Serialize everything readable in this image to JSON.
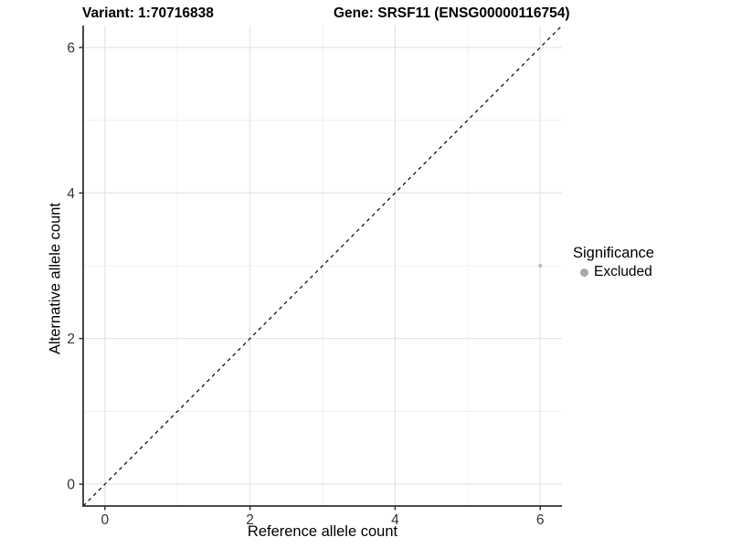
{
  "chart_data": {
    "type": "scatter",
    "title_left": "Variant: 1:70716838",
    "title_right": "Gene: SRSF11 (ENSG00000116754)",
    "xlabel": "Reference allele count",
    "ylabel": "Alternative allele count",
    "xlim": [
      -0.3,
      6.3
    ],
    "ylim": [
      -0.3,
      6.3
    ],
    "x_ticks": [
      0,
      2,
      4,
      6
    ],
    "y_ticks": [
      0,
      2,
      4,
      6
    ],
    "x_minor_ticks": [
      1,
      3,
      5
    ],
    "y_minor_ticks": [
      1,
      3,
      5
    ],
    "grid": "major and minor, light grey on white panel",
    "identity_line": {
      "style": "dashed",
      "color": "#000000",
      "from": [
        -0.3,
        -0.3
      ],
      "to": [
        6.3,
        6.3
      ]
    },
    "series": [
      {
        "name": "Excluded",
        "color": "#b8b8b8",
        "marker": "circle",
        "marker_radius_px": 2,
        "points": [
          {
            "x": 6,
            "y": 3
          }
        ]
      }
    ],
    "legend": {
      "title": "Significance",
      "position": "right",
      "entries": [
        {
          "label": "Excluded",
          "color": "#a8a8a8"
        }
      ]
    },
    "colors": {
      "axis_line": "#333333",
      "tick_mark": "#333333",
      "tick_label": "#333333",
      "grid_major": "#e3e3e3",
      "grid_minor": "#f1f1f1",
      "panel_background": "#ffffff"
    }
  }
}
